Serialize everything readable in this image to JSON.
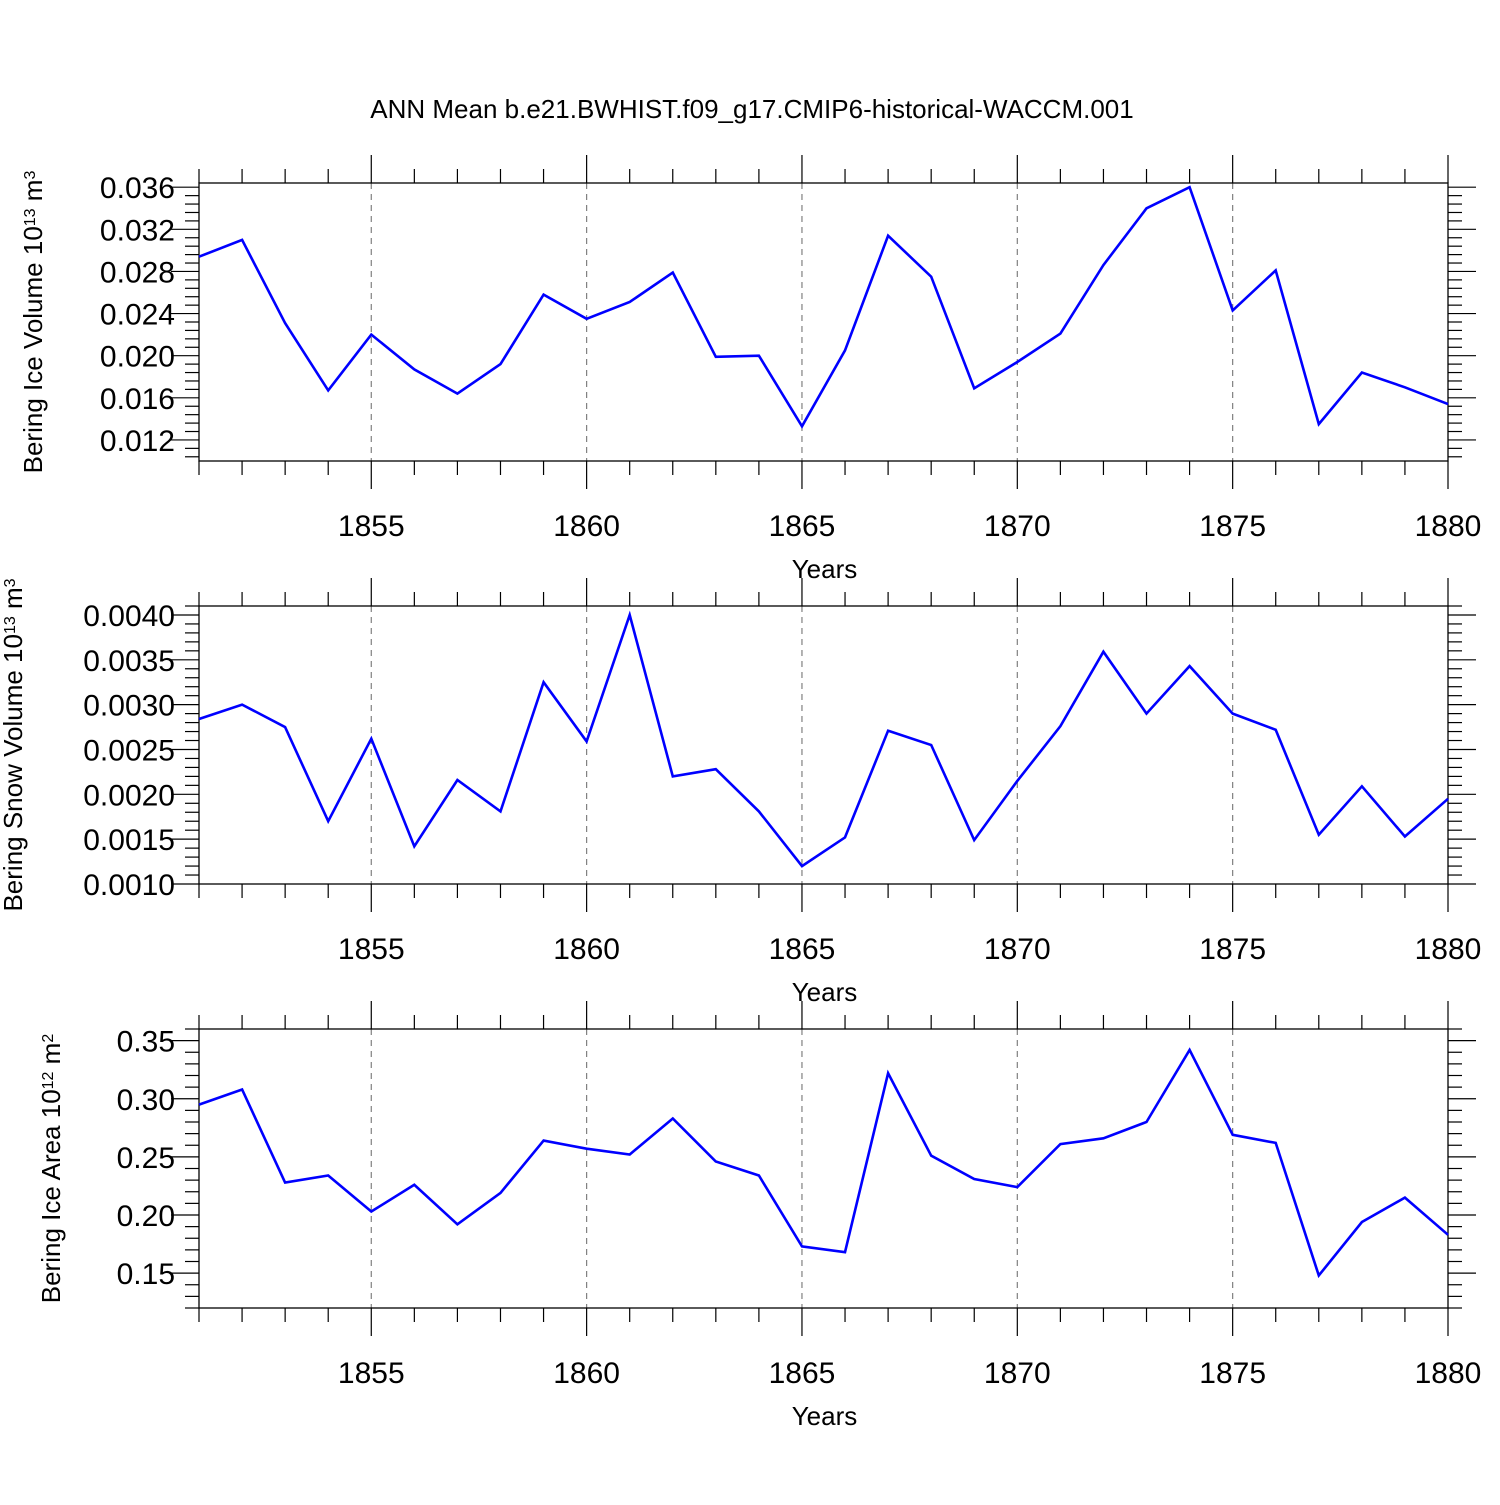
{
  "title": "ANN Mean b.e21.BWHIST.f09_g17.CMIP6-historical-WACCM.001",
  "colors": {
    "line": "#0000ff",
    "frame": "#000000",
    "grid": "#808080"
  },
  "chart_data": [
    {
      "type": "line",
      "ylabel": {
        "text": "Bering Ice Volume 10",
        "sup": "13",
        "unit": " m",
        "unit_sup": "3"
      },
      "xlabel": "Years",
      "xlim": [
        1851,
        1880
      ],
      "ylim": [
        0.01,
        0.0364
      ],
      "yticks": [
        0.012,
        0.016,
        0.02,
        0.024,
        0.028,
        0.032,
        0.036
      ],
      "ytick_labels": [
        "0.012",
        "0.016",
        "0.020",
        "0.024",
        "0.028",
        "0.032",
        "0.036"
      ],
      "xticks": [
        1855,
        1860,
        1865,
        1870,
        1875,
        1880
      ],
      "xtick_labels": [
        "1855",
        "1860",
        "1865",
        "1870",
        "1875",
        "1880"
      ],
      "x": [
        1851,
        1852,
        1853,
        1854,
        1855,
        1856,
        1857,
        1858,
        1859,
        1860,
        1861,
        1862,
        1863,
        1864,
        1865,
        1866,
        1867,
        1868,
        1869,
        1870,
        1871,
        1872,
        1873,
        1874,
        1875,
        1876,
        1877,
        1878,
        1879,
        1880
      ],
      "series": [
        {
          "values": [
            0.0294,
            0.031,
            0.0231,
            0.0167,
            0.022,
            0.0187,
            0.0164,
            0.0192,
            0.0258,
            0.0235,
            0.0251,
            0.0279,
            0.0199,
            0.02,
            0.0133,
            0.0205,
            0.0314,
            0.0275,
            0.0169,
            0.0194,
            0.0221,
            0.0286,
            0.034,
            0.036,
            0.0243,
            0.0281,
            0.0135,
            0.0184,
            0.017,
            0.0154
          ]
        }
      ],
      "grid": "vertical dashed at major x ticks"
    },
    {
      "type": "line",
      "ylabel": {
        "text": "Bering Snow Volume 10",
        "sup": "13",
        "unit": " m",
        "unit_sup": "3"
      },
      "xlabel": "Years",
      "xlim": [
        1851,
        1880
      ],
      "ylim": [
        0.001,
        0.0041
      ],
      "yticks": [
        0.001,
        0.0015,
        0.002,
        0.0025,
        0.003,
        0.0035,
        0.004
      ],
      "ytick_labels": [
        "0.0010",
        "0.0015",
        "0.0020",
        "0.0025",
        "0.0030",
        "0.0035",
        "0.0040"
      ],
      "xticks": [
        1855,
        1860,
        1865,
        1870,
        1875,
        1880
      ],
      "xtick_labels": [
        "1855",
        "1860",
        "1865",
        "1870",
        "1875",
        "1880"
      ],
      "x": [
        1851,
        1852,
        1853,
        1854,
        1855,
        1856,
        1857,
        1858,
        1859,
        1860,
        1861,
        1862,
        1863,
        1864,
        1865,
        1866,
        1867,
        1868,
        1869,
        1870,
        1871,
        1872,
        1873,
        1874,
        1875,
        1876,
        1877,
        1878,
        1879,
        1880
      ],
      "series": [
        {
          "values": [
            0.00284,
            0.003,
            0.00275,
            0.0017,
            0.00262,
            0.00142,
            0.00216,
            0.00181,
            0.00325,
            0.00259,
            0.004,
            0.0022,
            0.00228,
            0.00181,
            0.0012,
            0.00152,
            0.00271,
            0.00255,
            0.00149,
            0.00215,
            0.00276,
            0.00359,
            0.0029,
            0.00343,
            0.0029,
            0.00272,
            0.00155,
            0.00209,
            0.00153,
            0.00195
          ]
        }
      ],
      "grid": "vertical dashed at major x ticks"
    },
    {
      "type": "line",
      "ylabel": {
        "text": "Bering Ice Area 10",
        "sup": "12",
        "unit": " m",
        "unit_sup": "2"
      },
      "xlabel": "Years",
      "xlim": [
        1851,
        1880
      ],
      "ylim": [
        0.12,
        0.36
      ],
      "yticks": [
        0.15,
        0.2,
        0.25,
        0.3,
        0.35
      ],
      "ytick_labels": [
        "0.15",
        "0.20",
        "0.25",
        "0.30",
        "0.35"
      ],
      "xticks": [
        1855,
        1860,
        1865,
        1870,
        1875,
        1880
      ],
      "xtick_labels": [
        "1855",
        "1860",
        "1865",
        "1870",
        "1875",
        "1880"
      ],
      "x": [
        1851,
        1852,
        1853,
        1854,
        1855,
        1856,
        1857,
        1858,
        1859,
        1860,
        1861,
        1862,
        1863,
        1864,
        1865,
        1866,
        1867,
        1868,
        1869,
        1870,
        1871,
        1872,
        1873,
        1874,
        1875,
        1876,
        1877,
        1878,
        1879,
        1880
      ],
      "series": [
        {
          "values": [
            0.295,
            0.308,
            0.228,
            0.234,
            0.203,
            0.226,
            0.192,
            0.219,
            0.264,
            0.257,
            0.252,
            0.283,
            0.246,
            0.234,
            0.173,
            0.168,
            0.322,
            0.251,
            0.231,
            0.224,
            0.261,
            0.266,
            0.28,
            0.342,
            0.269,
            0.262,
            0.148,
            0.194,
            0.215,
            0.183
          ]
        }
      ],
      "grid": "vertical dashed at major x ticks"
    }
  ]
}
